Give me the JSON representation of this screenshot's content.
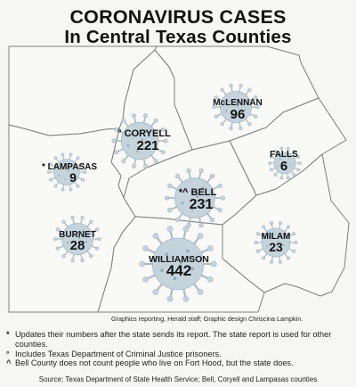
{
  "title": {
    "line1": "CORONAVIRUS CASES",
    "line2": "In Central Texas Counties"
  },
  "colors": {
    "border": "#7d7d7d",
    "land": "#f9f9f7",
    "virus_fill": "#c4d3dc",
    "virus_stroke": "#a9bac6",
    "virus_dot": "#95aab7",
    "background": "#f6f6f4"
  },
  "counties": [
    {
      "key": "coryell",
      "name": "CORYELL",
      "count": "221",
      "marker": "°",
      "has_virus_icon": true
    },
    {
      "key": "mclennan",
      "name": "McLENNAN",
      "count": "96",
      "marker": "",
      "has_virus_icon": true
    },
    {
      "key": "falls",
      "name": "FALLS",
      "count": "6",
      "marker": "",
      "has_virus_icon": true
    },
    {
      "key": "lampasas",
      "name": "LAMPASAS",
      "count": "9",
      "marker": "*",
      "has_virus_icon": true
    },
    {
      "key": "bell",
      "name": "BELL",
      "count": "231",
      "marker": "*^",
      "has_virus_icon": true
    },
    {
      "key": "burnet",
      "name": "BURNET",
      "count": "28",
      "marker": "",
      "has_virus_icon": true
    },
    {
      "key": "milam",
      "name": "MILAM",
      "count": "23",
      "marker": "",
      "has_virus_icon": true
    },
    {
      "key": "williamson",
      "name": "WILLIAMSON",
      "count": "442",
      "marker": "",
      "has_virus_icon": true
    }
  ],
  "credit": "Graphics reporting, Herald staff; Graphic design Chriscina Lampkin.",
  "notes": [
    {
      "symbol": "*",
      "text": "Updates their numbers after the state sends its report. The state report is used for other counties."
    },
    {
      "symbol": "°",
      "text": "Includes Texas Department of Criminal Justice prisoners."
    },
    {
      "symbol": "^",
      "text": "Bell County does not count people who live on Fort Hood, but the state does."
    }
  ],
  "source": "Source: Texas Department of State Health Service; Bell, Coryell and Lampasas counties"
}
